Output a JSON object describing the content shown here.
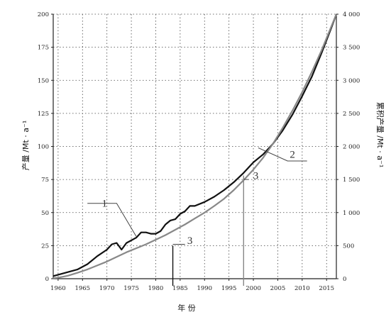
{
  "chart_data": {
    "type": "line",
    "xlabel": "年 份",
    "ylabel": "产量 /Mt · a⁻¹",
    "ylabel_right": "累积产量 /Mt · a⁻¹",
    "grid": true,
    "xlim": [
      1959,
      2017
    ],
    "ylim": [
      0,
      200
    ],
    "ylim_right": [
      0,
      4000
    ],
    "x_ticks": [
      "1960",
      "1965",
      "1970",
      "1975",
      "1980",
      "1985",
      "1990",
      "1995",
      "2000",
      "2005",
      "2010",
      "2015"
    ],
    "y_ticks": [
      "0",
      "25",
      "50",
      "75",
      "100",
      "125",
      "150",
      "175",
      "200"
    ],
    "y_ticks_right": [
      "0",
      "500",
      "1 000",
      "1 500",
      "2 000",
      "2 500",
      "3 000",
      "3 500",
      "4 000"
    ],
    "series": [
      {
        "name": "1",
        "axis": "left",
        "color": "#111111",
        "points": [
          [
            1959,
            2
          ],
          [
            1960,
            3
          ],
          [
            1962,
            5
          ],
          [
            1964,
            7
          ],
          [
            1966,
            11
          ],
          [
            1968,
            17
          ],
          [
            1970,
            22
          ],
          [
            1971,
            26
          ],
          [
            1972,
            27
          ],
          [
            1973,
            22
          ],
          [
            1974,
            27
          ],
          [
            1975,
            29
          ],
          [
            1976,
            31
          ],
          [
            1977,
            35
          ],
          [
            1978,
            35
          ],
          [
            1979,
            34
          ],
          [
            1980,
            34
          ],
          [
            1981,
            36
          ],
          [
            1982,
            41
          ],
          [
            1983,
            44
          ],
          [
            1984,
            45
          ],
          [
            1985,
            49
          ],
          [
            1986,
            51
          ],
          [
            1987,
            55
          ],
          [
            1988,
            55
          ],
          [
            1990,
            58
          ],
          [
            1992,
            62
          ],
          [
            1994,
            67
          ],
          [
            1996,
            73
          ],
          [
            1998,
            80
          ],
          [
            2000,
            88
          ],
          [
            2002,
            94
          ],
          [
            2004,
            102
          ],
          [
            2006,
            112
          ],
          [
            2008,
            124
          ],
          [
            2010,
            138
          ],
          [
            2012,
            153
          ],
          [
            2014,
            171
          ],
          [
            2016,
            190
          ],
          [
            2017,
            200
          ]
        ]
      },
      {
        "name": "2",
        "axis": "right",
        "color": "#888888",
        "points": [
          [
            1959,
            10
          ],
          [
            1960,
            15
          ],
          [
            1962,
            45
          ],
          [
            1964,
            90
          ],
          [
            1966,
            140
          ],
          [
            1968,
            200
          ],
          [
            1970,
            260
          ],
          [
            1972,
            330
          ],
          [
            1974,
            400
          ],
          [
            1976,
            460
          ],
          [
            1978,
            520
          ],
          [
            1980,
            590
          ],
          [
            1982,
            660
          ],
          [
            1984,
            740
          ],
          [
            1986,
            820
          ],
          [
            1988,
            910
          ],
          [
            1990,
            1000
          ],
          [
            1992,
            1100
          ],
          [
            1994,
            1210
          ],
          [
            1996,
            1340
          ],
          [
            1998,
            1490
          ],
          [
            2000,
            1650
          ],
          [
            2002,
            1830
          ],
          [
            2004,
            2040
          ],
          [
            2006,
            2280
          ],
          [
            2008,
            2540
          ],
          [
            2010,
            2820
          ],
          [
            2012,
            3130
          ],
          [
            2014,
            3460
          ],
          [
            2016,
            3820
          ],
          [
            2017,
            4000
          ]
        ]
      }
    ],
    "annotations": [
      {
        "text": "1",
        "x": 1969.5,
        "y": 57
      },
      {
        "text": "2",
        "x": 2008,
        "y": 94
      },
      {
        "text": "3",
        "x": 2000.5,
        "y": 78
      },
      {
        "text": "3",
        "x": 1987,
        "y": 29
      }
    ],
    "markers": [
      {
        "x": 1983.5,
        "y": 25,
        "color": "#111111"
      },
      {
        "x": 1998,
        "y": 78,
        "color": "#888888"
      }
    ]
  }
}
